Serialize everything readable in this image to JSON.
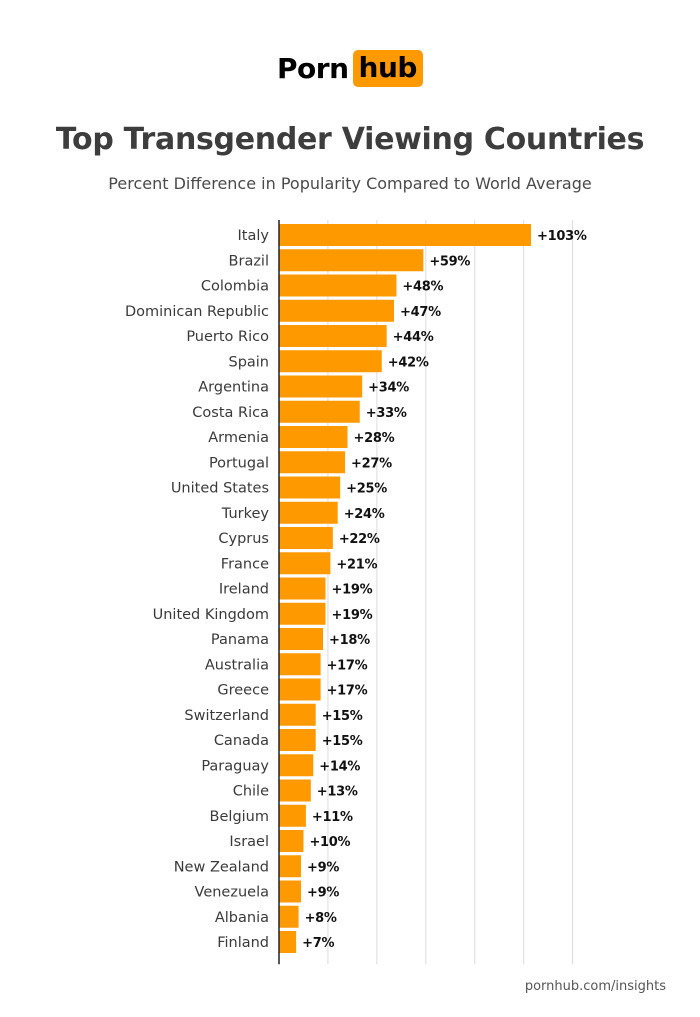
{
  "logo": {
    "part1": "Porn",
    "part2": "hub"
  },
  "footer": {
    "source": "pornhub.com/insights"
  },
  "colors": {
    "bar": "#ff9900",
    "brand": "#ff9900",
    "title": "#3d3d3d",
    "grid": "#dcdcdc"
  },
  "chart_data": {
    "type": "bar",
    "orientation": "horizontal",
    "title": "Top Transgender Viewing Countries",
    "subtitle": "Percent Difference in Popularity Compared to World Average",
    "xlim": [
      0,
      120
    ],
    "grid": "vertical",
    "categories": [
      "Italy",
      "Brazil",
      "Colombia",
      "Dominican Republic",
      "Puerto Rico",
      "Spain",
      "Argentina",
      "Costa Rica",
      "Armenia",
      "Portugal",
      "United States",
      "Turkey",
      "Cyprus",
      "France",
      "Ireland",
      "United Kingdom",
      "Panama",
      "Australia",
      "Greece",
      "Switzerland",
      "Canada",
      "Paraguay",
      "Chile",
      "Belgium",
      "Israel",
      "New Zealand",
      "Venezuela",
      "Albania",
      "Finland"
    ],
    "values": [
      103,
      59,
      48,
      47,
      44,
      42,
      34,
      33,
      28,
      27,
      25,
      24,
      22,
      21,
      19,
      19,
      18,
      17,
      17,
      15,
      15,
      14,
      13,
      11,
      10,
      9,
      9,
      8,
      7
    ],
    "labels": [
      "+103%",
      "+59%",
      "+48%",
      "+47%",
      "+44%",
      "+42%",
      "+34%",
      "+33%",
      "+28%",
      "+27%",
      "+25%",
      "+24%",
      "+22%",
      "+21%",
      "+19%",
      "+19%",
      "+18%",
      "+17%",
      "+17%",
      "+15%",
      "+15%",
      "+14%",
      "+13%",
      "+11%",
      "+10%",
      "+9%",
      "+9%",
      "+8%",
      "+7%"
    ]
  }
}
